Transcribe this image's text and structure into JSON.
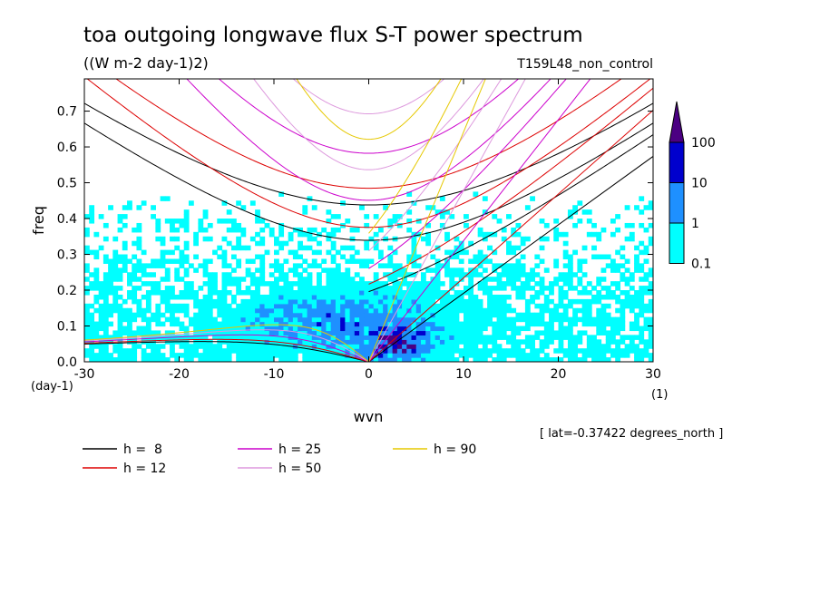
{
  "chart_data": {
    "type": "heatmap",
    "title": "toa outgoing longwave flux S-T power spectrum",
    "units": "((W m-2 day-1)2)",
    "run_label": "T159L48_non_control",
    "xlabel": "wvn",
    "ylabel": "freq",
    "x_unit": "(1)",
    "y_unit": "(day-1)",
    "xlim": [
      -30,
      30
    ],
    "ylim": [
      0,
      0.79
    ],
    "x_ticks": [
      -30,
      -20,
      -10,
      0,
      10,
      20,
      30
    ],
    "x_tick_labels": [
      "-30",
      "-20",
      "-10",
      "0",
      "10",
      "20",
      "30"
    ],
    "y_ticks": [
      0,
      0.1,
      0.2,
      0.3,
      0.4,
      0.5,
      0.6,
      0.7
    ],
    "y_tick_labels": [
      "0.0",
      "0.1",
      "0.2",
      "0.3",
      "0.4",
      "0.5",
      "0.6",
      "0.7"
    ],
    "colorbar": {
      "levels": [
        0.1,
        1,
        10,
        100
      ],
      "level_labels": [
        "0.1",
        "1",
        "10",
        "100"
      ],
      "colors": [
        "#00ffff",
        "#1e90ff",
        "#0000cd",
        "#4b0082"
      ]
    },
    "shading_summary": {
      "background_color": "#ffffff",
      "strong_peak_wvn": [
        0,
        6
      ],
      "strong_peak_freq": [
        0.0,
        0.12
      ]
    },
    "dispersion_curves": [
      {
        "name": "h =  8",
        "h": 8,
        "color": "#000000"
      },
      {
        "name": "h = 12",
        "h": 12,
        "color": "#dd0000"
      },
      {
        "name": "h = 25",
        "h": 25,
        "color": "#cc00cc"
      },
      {
        "name": "h = 50",
        "h": 50,
        "color": "#dd99dd"
      },
      {
        "name": "h = 90",
        "h": 90,
        "color": "#e6c800"
      }
    ],
    "annotation": "[ lat=-0.37422 degrees_north ]"
  }
}
